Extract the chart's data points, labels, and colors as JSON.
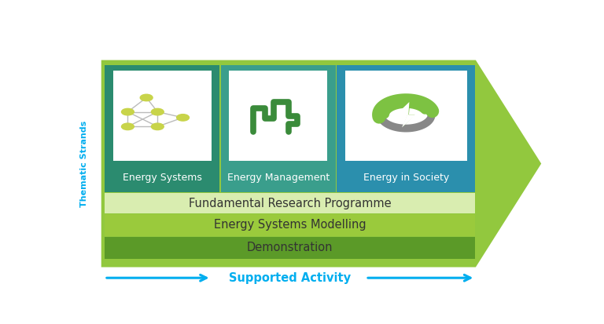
{
  "bg_color": "#ffffff",
  "arrow_color": "#92C83E",
  "col1_color": "#2B8B6F",
  "col2_color": "#3A9E8C",
  "col3_color": "#2B8FAD",
  "bar1_color": "#D9EDB0",
  "bar2_color": "#9ACA3C",
  "bar3_color": "#5B9A28",
  "thematic_color": "#00AEEF",
  "supported_color": "#00AEEF",
  "node_color": "#C8D44A",
  "edge_color": "#BBBBBB",
  "mgmt_color": "#3A8B3A",
  "label1": "Energy Systems",
  "label2": "Energy Management",
  "label3": "Energy in Society",
  "bar_labels": [
    "Fundamental Research Programme",
    "Energy Systems Modelling",
    "Demonstration"
  ],
  "thematic_label": "Thematic Strands",
  "supported_label": "Supported Activity"
}
